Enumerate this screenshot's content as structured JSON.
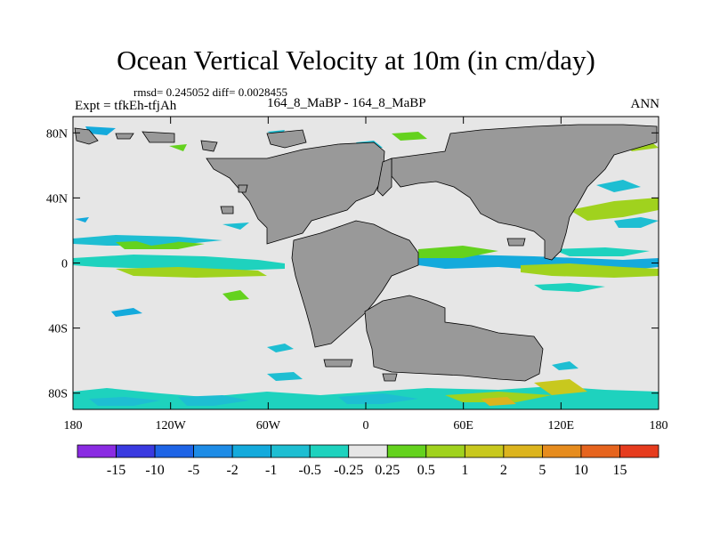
{
  "title": "Ocean Vertical Velocity at 10m (in cm/day)",
  "stats": "rmsd= 0.245052 diff= 0.0028455",
  "case": "164_8_MaBP - 164_8_MaBP",
  "experiment": "Expt = tfkEh-tfjAh",
  "season": "ANN",
  "axes": {
    "lon_ticks": [
      {
        "lon": -180,
        "label": "180"
      },
      {
        "lon": -120,
        "label": "120W"
      },
      {
        "lon": -60,
        "label": "60W"
      },
      {
        "lon": 0,
        "label": "0"
      },
      {
        "lon": 60,
        "label": "60E"
      },
      {
        "lon": 120,
        "label": "120E"
      },
      {
        "lon": 180,
        "label": "180"
      }
    ],
    "lat_ticks": [
      {
        "lat": 80,
        "label": "80N"
      },
      {
        "lat": 40,
        "label": "40N"
      },
      {
        "lat": 0,
        "label": "0"
      },
      {
        "lat": -40,
        "label": "40S"
      },
      {
        "lat": -80,
        "label": "80S"
      }
    ],
    "lon_range": [
      -180,
      180
    ],
    "lat_range": [
      -90,
      90
    ]
  },
  "colorbar": {
    "colors": [
      "#8a2be2",
      "#3a3ae0",
      "#1e64e6",
      "#1e8ce6",
      "#14aadc",
      "#1ebed2",
      "#1ed2be",
      "#e6e6e6",
      "#64d21e",
      "#a0d21e",
      "#c8c81e",
      "#dcb41e",
      "#e68c1e",
      "#e6641e",
      "#e63c1e"
    ],
    "labels": [
      "-15",
      "-10",
      "-5",
      "-2",
      "-1",
      "-0.5",
      "-0.25",
      "0.25",
      "0.5",
      "1",
      "2",
      "5",
      "10",
      "15"
    ]
  },
  "colors": {
    "ocean_background": "#e6e6e6",
    "land": "#999999"
  }
}
